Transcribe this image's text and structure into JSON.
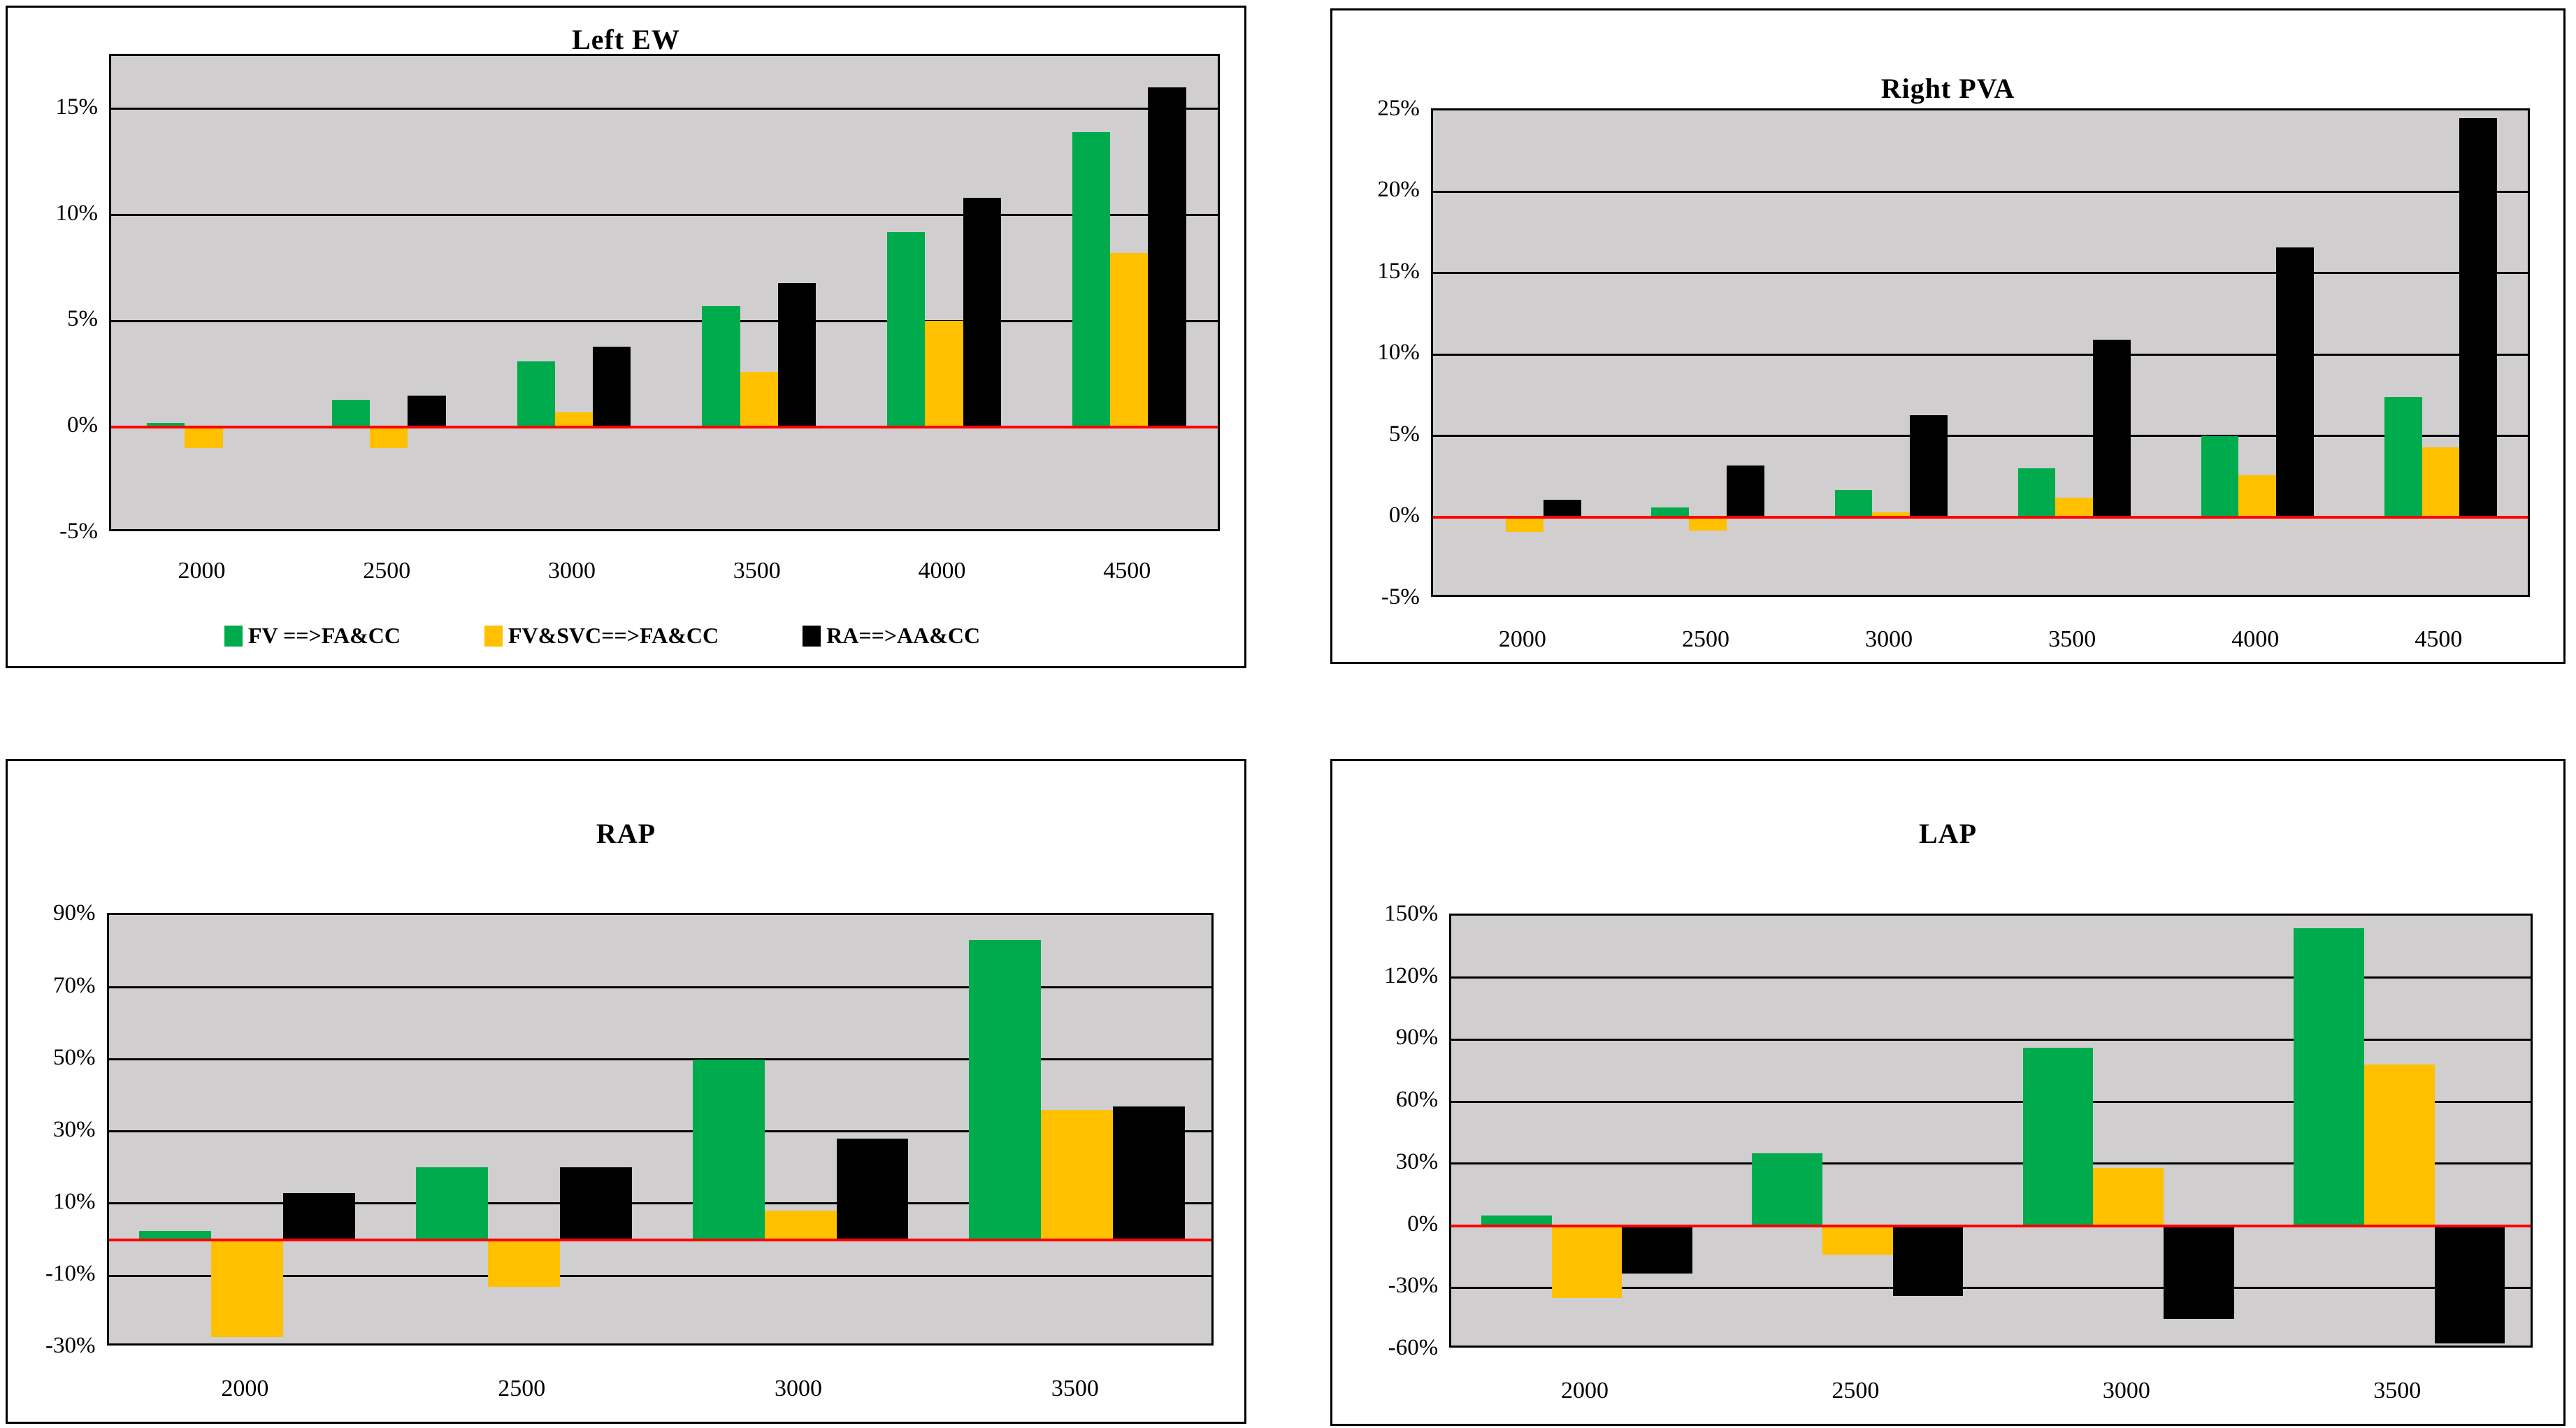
{
  "colors": {
    "green": "#00AB4E",
    "yellow": "#FFC000",
    "black": "#000000",
    "plot_bg": "#D0CECE",
    "grid": "#000000",
    "zero_line": "#FF0000",
    "panel_border": "#000000",
    "page_bg": "#FFFFFF"
  },
  "legend": {
    "items": [
      {
        "label": "FV ==>FA&CC",
        "color_key": "green"
      },
      {
        "label": "FV&SVC==>FA&CC",
        "color_key": "yellow"
      },
      {
        "label": "RA==>AA&CC",
        "color_key": "black"
      }
    ]
  },
  "chart_data": [
    {
      "type": "bar",
      "title": "Left EW",
      "categories": [
        "2000",
        "2500",
        "3000",
        "3500",
        "4000",
        "4500"
      ],
      "series": [
        {
          "name": "FV ==>FA&CC",
          "color": "green",
          "values": [
            0.2,
            1.3,
            3.1,
            5.7,
            9.2,
            13.9
          ]
        },
        {
          "name": "FV&SVC==>FA&CC",
          "color": "yellow",
          "values": [
            -1.0,
            -1.0,
            0.7,
            2.6,
            5.0,
            8.2
          ]
        },
        {
          "name": "RA==>AA&CC",
          "color": "black",
          "values": [
            0.0,
            1.5,
            3.8,
            6.8,
            10.8,
            16.0
          ]
        }
      ],
      "ylim": [
        -5,
        17.5
      ],
      "yticks": [
        15,
        10,
        5,
        0,
        -5
      ],
      "ytick_suffix": "%",
      "grid": true,
      "legend_position": "bottom",
      "zero_line": true
    },
    {
      "type": "bar",
      "title": "Right PVA",
      "categories": [
        "2000",
        "2500",
        "3000",
        "3500",
        "4000",
        "4500"
      ],
      "series": [
        {
          "name": "FV ==>FA&CC",
          "color": "green",
          "values": [
            0.0,
            0.6,
            1.7,
            3.0,
            5.0,
            7.4
          ]
        },
        {
          "name": "FV&SVC==>FA&CC",
          "color": "yellow",
          "values": [
            -0.9,
            -0.8,
            0.3,
            1.2,
            2.6,
            4.3
          ]
        },
        {
          "name": "RA==>AA&CC",
          "color": "black",
          "values": [
            1.1,
            3.2,
            6.3,
            10.9,
            16.6,
            24.5
          ]
        }
      ],
      "ylim": [
        -5,
        25
      ],
      "yticks": [
        25,
        20,
        15,
        10,
        5,
        0,
        -5
      ],
      "ytick_suffix": "%",
      "grid": true,
      "legend_position": "none",
      "zero_line": true
    },
    {
      "type": "bar",
      "title": "RAP",
      "categories": [
        "2000",
        "2500",
        "3000",
        "3500"
      ],
      "series": [
        {
          "name": "FV ==>FA&CC",
          "color": "green",
          "values": [
            2.4,
            20,
            50,
            83
          ]
        },
        {
          "name": "FV&SVC==>FA&CC",
          "color": "yellow",
          "values": [
            -27,
            -13,
            8,
            36
          ]
        },
        {
          "name": "RA==>AA&CC",
          "color": "black",
          "values": [
            13,
            20,
            28,
            37
          ]
        }
      ],
      "ylim": [
        -30,
        90
      ],
      "yticks": [
        90,
        70,
        50,
        30,
        10,
        -10,
        -30
      ],
      "ytick_suffix": "%",
      "grid": true,
      "legend_position": "none",
      "zero_line": true
    },
    {
      "type": "bar",
      "title": "LAP",
      "categories": [
        "2000",
        "2500",
        "3000",
        "3500"
      ],
      "series": [
        {
          "name": "FV ==>FA&CC",
          "color": "green",
          "values": [
            5,
            35,
            86,
            144
          ]
        },
        {
          "name": "FV&SVC==>FA&CC",
          "color": "yellow",
          "values": [
            -35,
            -14,
            28,
            78
          ]
        },
        {
          "name": "RA==>AA&CC",
          "color": "black",
          "values": [
            -23,
            -34,
            -45,
            -57
          ]
        }
      ],
      "ylim": [
        -60,
        150
      ],
      "yticks": [
        150,
        120,
        90,
        60,
        30,
        0,
        -30,
        -60
      ],
      "ytick_suffix": "%",
      "grid": true,
      "legend_position": "none",
      "zero_line": true
    }
  ]
}
